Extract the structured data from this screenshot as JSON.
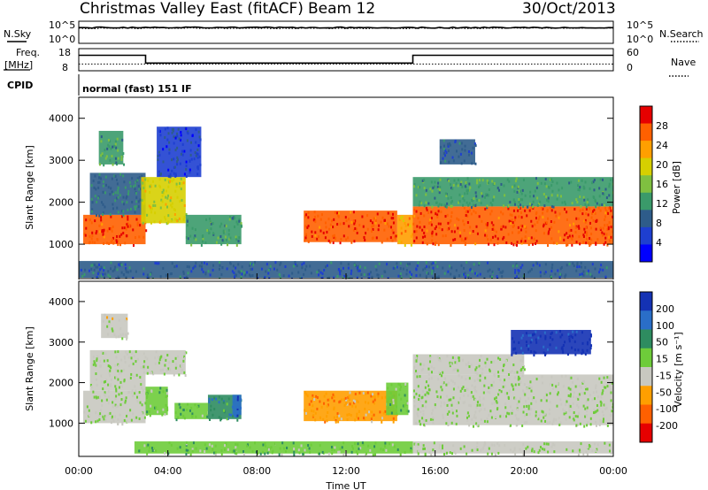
{
  "header": {
    "title": "Christmas Valley East (fitACF)",
    "beam": "Beam 12",
    "date": "30/Oct/2013"
  },
  "top_panels": {
    "nsky_label": "N.Sky",
    "nsearch_label": "N.Search",
    "noise_left_ticks": [
      "10^5",
      "10^0"
    ],
    "noise_right_ticks": [
      "10^5",
      "10^0"
    ],
    "freq_label_1": "Freq.",
    "freq_label_2": "[MHz]",
    "freq_ticks": [
      "18",
      "8"
    ],
    "nave_label": "Nave",
    "nave_ticks": [
      "60",
      "0"
    ],
    "cpid_label": "CPID",
    "cpid_text": "normal (fast) 151 IF"
  },
  "power_colorbar": {
    "label": "Power [dB]",
    "ticks": [
      "28",
      "24",
      "20",
      "16",
      "12",
      "8",
      "4"
    ],
    "colors": [
      "#e60000",
      "#ff6000",
      "#ff9f00",
      "#d6cf00",
      "#7fc040",
      "#3a9a6a",
      "#2e5c8a",
      "#1e3fd0",
      "#0000ff"
    ]
  },
  "velocity_colorbar": {
    "label": "Velocity [m s⁻¹]",
    "ticks": [
      "200",
      "100",
      "50",
      "15",
      "-15",
      "-50",
      "-100",
      "-200"
    ],
    "colors": [
      "#1432b4",
      "#2a6ec8",
      "#2e8c60",
      "#6ecc3a",
      "#c8c8c0",
      "#ff9f00",
      "#ff6000",
      "#e60000"
    ]
  },
  "axes": {
    "ylabel": "Slant Range [km]",
    "yticks": [
      "1000",
      "2000",
      "3000",
      "4000"
    ],
    "xlabel": "Time UT",
    "xticks": [
      "00:00",
      "04:00",
      "08:00",
      "12:00",
      "16:00",
      "20:00",
      "00:00"
    ]
  },
  "chart_data": {
    "type": "heatmap",
    "title": "Christmas Valley East (fitACF)",
    "xlabel": "Time UT",
    "ylabel": "Slant Range [km]",
    "xlim": [
      "00:00",
      "24:00"
    ],
    "ylim": [
      180,
      4500
    ],
    "panels": [
      {
        "name": "Power",
        "colorbar_label": "Power [dB]",
        "colorbar_range": [
          0,
          30
        ],
        "regions": [
          {
            "t": [
              0.2,
              3.0
            ],
            "range_km": [
              1000,
              1700
            ],
            "value": 26
          },
          {
            "t": [
              0.5,
              3.0
            ],
            "range_km": [
              1700,
              2700
            ],
            "value": 10
          },
          {
            "t": [
              0.9,
              2.0
            ],
            "range_km": [
              2900,
              3700
            ],
            "value": 12
          },
          {
            "t": [
              2.8,
              4.8
            ],
            "range_km": [
              1500,
              2600
            ],
            "value": 18
          },
          {
            "t": [
              3.5,
              5.5
            ],
            "range_km": [
              2600,
              3800
            ],
            "value": 6
          },
          {
            "t": [
              4.8,
              7.3
            ],
            "range_km": [
              1000,
              1700
            ],
            "value": 12
          },
          {
            "t": [
              10.1,
              14.3
            ],
            "range_km": [
              1050,
              1800
            ],
            "value": 26
          },
          {
            "t": [
              14.3,
              15.0
            ],
            "range_km": [
              1000,
              1700
            ],
            "value": 22
          },
          {
            "t": [
              15.0,
              24.0
            ],
            "range_km": [
              1000,
              1900
            ],
            "value": 26
          },
          {
            "t": [
              15.0,
              24.0
            ],
            "range_km": [
              1900,
              2600
            ],
            "value": 12
          },
          {
            "t": [
              16.2,
              17.8
            ],
            "range_km": [
              2900,
              3500
            ],
            "value": 8
          },
          {
            "t": [
              0.0,
              24.0
            ],
            "range_km": [
              200,
              600
            ],
            "value": 8
          }
        ]
      },
      {
        "name": "Velocity",
        "colorbar_label": "Velocity [m s⁻¹]",
        "colorbar_range": [
          -200,
          200
        ],
        "regions": [
          {
            "t": [
              0.2,
              3.0
            ],
            "range_km": [
              1000,
              1800
            ],
            "value": 0
          },
          {
            "t": [
              0.5,
              3.0
            ],
            "range_km": [
              1800,
              2800
            ],
            "value": 0
          },
          {
            "t": [
              1.0,
              2.2
            ],
            "range_km": [
              3100,
              3700
            ],
            "value": -20
          },
          {
            "t": [
              3.0,
              4.8
            ],
            "range_km": [
              2200,
              2800
            ],
            "value": 0
          },
          {
            "t": [
              3.0,
              4.0
            ],
            "range_km": [
              1200,
              1900
            ],
            "value": 30
          },
          {
            "t": [
              4.3,
              5.8
            ],
            "range_km": [
              1100,
              1500
            ],
            "value": 30
          },
          {
            "t": [
              5.8,
              7.3
            ],
            "range_km": [
              1100,
              1700
            ],
            "value": 80
          },
          {
            "t": [
              6.9,
              7.3
            ],
            "range_km": [
              1200,
              1700
            ],
            "value": 150
          },
          {
            "t": [
              10.1,
              14.3
            ],
            "range_km": [
              1050,
              1800
            ],
            "value": -80
          },
          {
            "t": [
              13.8,
              14.8
            ],
            "range_km": [
              1200,
              2000
            ],
            "value": 30
          },
          {
            "t": [
              15.0,
              24.0
            ],
            "range_km": [
              950,
              2200
            ],
            "value": 0
          },
          {
            "t": [
              15.0,
              20.0
            ],
            "range_km": [
              2200,
              2700
            ],
            "value": 0
          },
          {
            "t": [
              19.4,
              23.0
            ],
            "range_km": [
              2700,
              3300
            ],
            "value": 180
          },
          {
            "t": [
              2.5,
              15.0
            ],
            "range_km": [
              250,
              550
            ],
            "value": 30
          },
          {
            "t": [
              15.0,
              24.0
            ],
            "range_km": [
              250,
              550
            ],
            "value": 0
          }
        ]
      }
    ],
    "noise": {
      "nsky_log10": 4.2,
      "nsearch_log10": 4.0
    },
    "frequency_mhz": [
      {
        "t": [
          0.0,
          3.0
        ],
        "value": 15.5
      },
      {
        "t": [
          3.0,
          15.0
        ],
        "value": 11.5
      },
      {
        "t": [
          15.0,
          24.0
        ],
        "value": 15.5
      }
    ],
    "nave": 18
  }
}
